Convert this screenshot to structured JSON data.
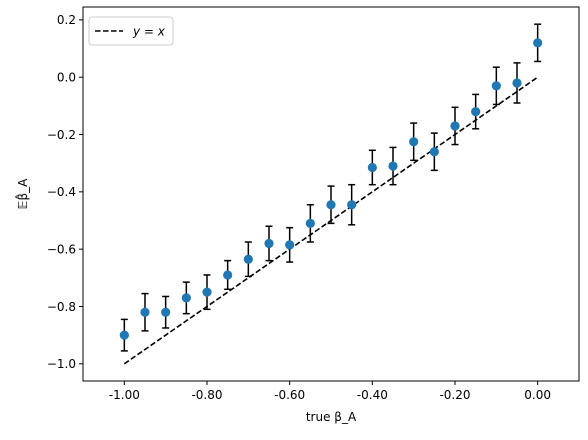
{
  "chart_data": {
    "type": "scatter",
    "xlabel": "true β_A",
    "ylabel": "𝔼β̂_A",
    "xlim": [
      -1.1,
      0.1
    ],
    "ylim": [
      -1.06,
      0.245
    ],
    "xticks": [
      -1.0,
      -0.8,
      -0.6,
      -0.4,
      -0.2,
      0.0
    ],
    "xtick_labels": [
      "-1.00",
      "-0.80",
      "-0.60",
      "-0.40",
      "-0.20",
      "0.00"
    ],
    "yticks": [
      -1.0,
      -0.8,
      -0.6,
      -0.4,
      -0.2,
      0.0,
      0.2
    ],
    "ytick_labels": [
      "−1.0",
      "−0.8",
      "−0.6",
      "−0.4",
      "−0.2",
      "0.0",
      "0.2"
    ],
    "grid": false,
    "legend": {
      "placement": "top-left",
      "entries": [
        "y = x"
      ]
    },
    "colors": {
      "points": "#1f77b4",
      "errorbars": "#000000",
      "reference": "#000000"
    },
    "series": [
      {
        "marker": "circle",
        "x": [
          -1.0,
          -0.95,
          -0.9,
          -0.85,
          -0.8,
          -0.75,
          -0.7,
          -0.65,
          -0.6,
          -0.55,
          -0.5,
          -0.45,
          -0.4,
          -0.35,
          -0.3,
          -0.25,
          -0.2,
          -0.15,
          -0.1,
          -0.05,
          0.0
        ],
        "y": [
          -0.9,
          -0.82,
          -0.82,
          -0.77,
          -0.75,
          -0.69,
          -0.635,
          -0.58,
          -0.585,
          -0.51,
          -0.445,
          -0.445,
          -0.315,
          -0.31,
          -0.225,
          -0.26,
          -0.17,
          -0.12,
          -0.03,
          -0.02,
          0.12
        ],
        "err": [
          0.055,
          0.065,
          0.055,
          0.055,
          0.06,
          0.05,
          0.06,
          0.06,
          0.06,
          0.065,
          0.065,
          0.07,
          0.06,
          0.065,
          0.065,
          0.065,
          0.065,
          0.06,
          0.065,
          0.07,
          0.065
        ]
      },
      {
        "name": "y = x",
        "style": "dashed-line",
        "x": [
          -1.0,
          0.0
        ],
        "y": [
          -1.0,
          0.0
        ]
      }
    ]
  }
}
